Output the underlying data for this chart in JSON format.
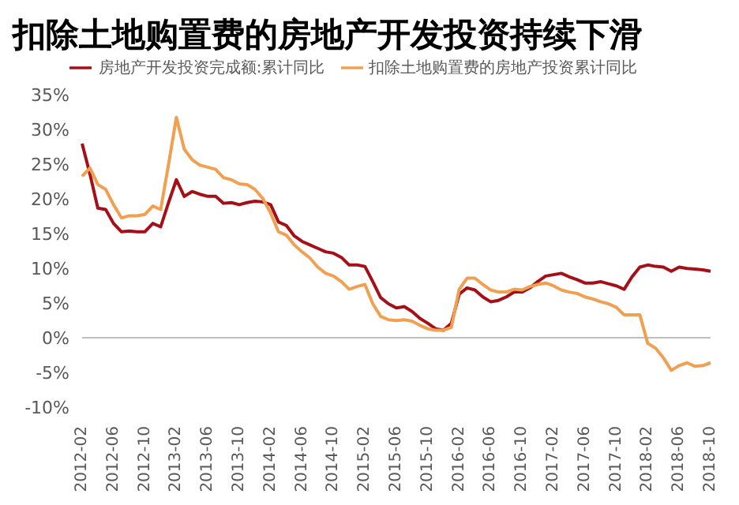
{
  "chart_data": {
    "type": "line",
    "title": "扣除土地购置费的房地产开发投资持续下滑",
    "categories": [
      "2012-02",
      null,
      null,
      null,
      "2012-06",
      null,
      null,
      null,
      "2012-10",
      null,
      null,
      null,
      "2013-02",
      null,
      null,
      null,
      "2013-06",
      null,
      null,
      null,
      "2013-10",
      null,
      null,
      null,
      "2014-02",
      null,
      null,
      null,
      "2014-06",
      null,
      null,
      null,
      "2014-10",
      null,
      null,
      null,
      "2015-02",
      null,
      null,
      null,
      "2015-06",
      null,
      null,
      null,
      "2015-10",
      null,
      null,
      null,
      "2016-02",
      null,
      null,
      null,
      "2016-06",
      null,
      null,
      null,
      "2016-10",
      null,
      null,
      null,
      "2017-02",
      null,
      null,
      null,
      "2017-06",
      null,
      null,
      null,
      "2017-10",
      null,
      null,
      null,
      "2018-02",
      null,
      null,
      null,
      "2018-06",
      null,
      null,
      null,
      "2018-10"
    ],
    "series": [
      {
        "name": "房地产开发投资完成额:累计同比",
        "color": "#a50f15",
        "values": [
          28,
          23.6,
          18.7,
          18.5,
          16.5,
          15.3,
          15.4,
          15.3,
          15.3,
          16.5,
          16.0,
          19.5,
          22.8,
          20.4,
          21.1,
          20.7,
          20.4,
          20.4,
          19.4,
          19.5,
          19.2,
          19.5,
          19.7,
          19.6,
          19.2,
          16.7,
          16.2,
          14.7,
          13.9,
          13.4,
          12.9,
          12.4,
          12.2,
          11.6,
          10.5,
          10.5,
          10.3,
          8.1,
          5.8,
          4.9,
          4.3,
          4.5,
          3.8,
          2.8,
          2.1,
          1.3,
          1.1,
          2.1,
          6.3,
          7.2,
          6.9,
          5.9,
          5.2,
          5.4,
          5.9,
          6.6,
          6.6,
          7.2,
          8.1,
          8.9,
          9.1,
          9.3,
          8.8,
          8.4,
          7.9,
          7.9,
          8.1,
          7.8,
          7.5,
          7.0,
          8.8,
          10.2,
          10.5,
          10.3,
          10.2,
          9.6,
          10.2,
          10.0,
          9.9,
          9.8,
          9.6
        ]
      },
      {
        "name": "扣除土地购置费的房地产投资累计同比",
        "color": "#f0a050",
        "values": [
          23.3,
          24.5,
          22.1,
          21.4,
          19.2,
          17.3,
          17.6,
          17.6,
          17.8,
          19.0,
          18.5,
          25.0,
          31.8,
          27.2,
          25.7,
          24.9,
          24.6,
          24.3,
          23.1,
          22.8,
          22.2,
          22.1,
          21.4,
          20.1,
          18.0,
          15.3,
          14.8,
          13.4,
          12.4,
          11.5,
          10.2,
          9.3,
          8.9,
          8.1,
          7.0,
          7.4,
          7.7,
          4.9,
          3.1,
          2.6,
          2.5,
          2.6,
          2.4,
          1.8,
          1.3,
          1.1,
          1.1,
          1.5,
          7.0,
          8.6,
          8.6,
          7.7,
          6.9,
          6.6,
          6.6,
          7.0,
          6.9,
          7.4,
          7.7,
          7.9,
          7.5,
          6.9,
          6.6,
          6.4,
          5.9,
          5.6,
          5.2,
          4.9,
          4.4,
          3.3,
          3.3,
          3.3,
          -0.8,
          -1.5,
          -2.9,
          -4.7,
          -4.0,
          -3.6,
          -4.1,
          -4.0,
          -3.6
        ]
      }
    ],
    "ylim": [
      -10,
      35
    ],
    "yticks": [
      {
        "value": -10,
        "label": "-10%"
      },
      {
        "value": -5,
        "label": "-5%"
      },
      {
        "value": 0,
        "label": "0%"
      },
      {
        "value": 5,
        "label": "5%"
      },
      {
        "value": 10,
        "label": "10%"
      },
      {
        "value": 15,
        "label": "15%"
      },
      {
        "value": 20,
        "label": "20%"
      },
      {
        "value": 25,
        "label": "25%"
      },
      {
        "value": 30,
        "label": "30%"
      },
      {
        "value": 35,
        "label": "35%"
      }
    ],
    "ref_lines": [
      {
        "axis": "y",
        "value": 0,
        "color": "#bfbfbf"
      }
    ],
    "grid": false,
    "legend": "top",
    "marker": "none",
    "line_style": "solid"
  }
}
